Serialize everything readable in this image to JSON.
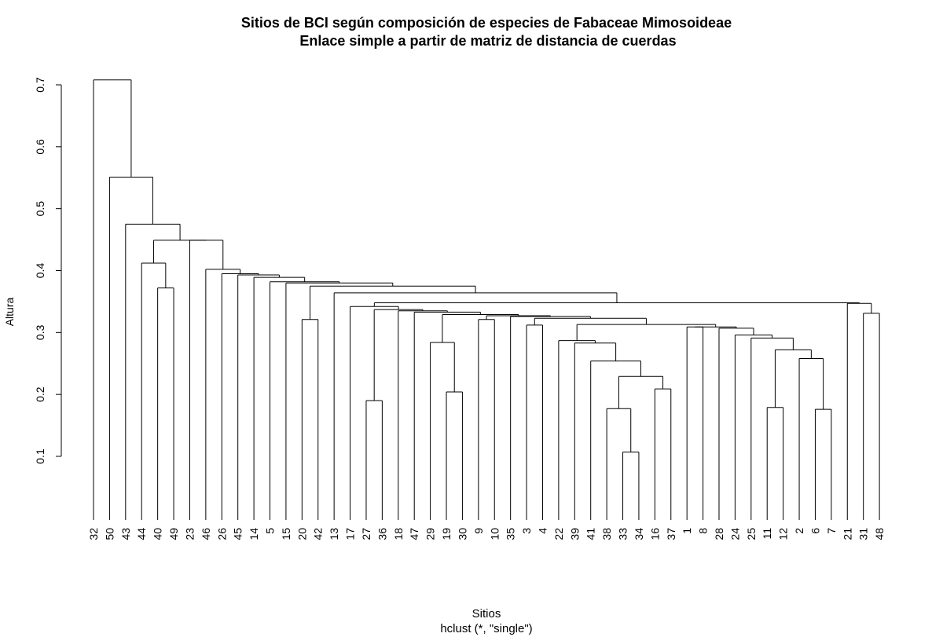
{
  "chart_data": {
    "type": "dendrogram",
    "title": "Sitios de BCI según composición de especies de Fabaceae Mimosoideae",
    "subtitle": "Enlace simple a partir de matriz de distancia de cuerdas",
    "xlabel": "Sitios",
    "sublabel": "hclust (*, \"single\")",
    "ylabel": "Altura",
    "yticks": [
      0.1,
      0.2,
      0.3,
      0.4,
      0.5,
      0.6,
      0.7
    ],
    "ylim": [
      0.1,
      0.7
    ],
    "leaf_order": [
      "32",
      "50",
      "43",
      "44",
      "40",
      "49",
      "23",
      "46",
      "26",
      "45",
      "14",
      "5",
      "15",
      "20",
      "42",
      "13",
      "17",
      "27",
      "36",
      "18",
      "47",
      "29",
      "19",
      "30",
      "9",
      "10",
      "35",
      "3",
      "4",
      "22",
      "39",
      "41",
      "38",
      "33",
      "34",
      "16",
      "37",
      "1",
      "8",
      "28",
      "24",
      "25",
      "11",
      "12",
      "2",
      "6",
      "7",
      "21",
      "31",
      "48"
    ],
    "merges": [
      {
        "a": "33",
        "b": "34",
        "height": 0.107
      },
      {
        "a": "6",
        "b": "7",
        "height": 0.176
      },
      {
        "a": "38",
        "b": [
          "33",
          "34"
        ],
        "height": 0.177
      },
      {
        "a": "11",
        "b": "12",
        "height": 0.179
      },
      {
        "a": "27",
        "b": "36",
        "height": 0.19
      },
      {
        "a": "19",
        "b": "30",
        "height": 0.204
      },
      {
        "a": "16",
        "b": "37",
        "height": 0.209
      },
      {
        "a": [
          "38",
          "33",
          "34"
        ],
        "b": [
          "16",
          "37"
        ],
        "height": 0.229
      },
      {
        "a": "41",
        "b": [
          "38",
          "33",
          "34",
          "16",
          "37"
        ],
        "height": 0.254
      },
      {
        "a": "2",
        "b": [
          "6",
          "7"
        ],
        "height": 0.258
      },
      {
        "a": [
          "11",
          "12"
        ],
        "b": [
          "2",
          "6",
          "7"
        ],
        "height": 0.272
      },
      {
        "a": "29",
        "b": [
          "19",
          "30"
        ],
        "height": 0.284
      },
      {
        "a": "39",
        "b": [
          "41",
          "38",
          "33",
          "34",
          "16",
          "37"
        ],
        "height": 0.283
      },
      {
        "a": "22",
        "b": [
          "39",
          "41",
          "38",
          "33",
          "34",
          "16",
          "37"
        ],
        "height": 0.287
      },
      {
        "a": "25",
        "b": [
          "11",
          "12",
          "2",
          "6",
          "7"
        ],
        "height": 0.291
      },
      {
        "a": "24",
        "b": [
          "25",
          "11",
          "12",
          "2",
          "6",
          "7"
        ],
        "height": 0.296
      },
      {
        "a": "28",
        "b": [
          "24",
          "25",
          "11",
          "12",
          "2",
          "6",
          "7"
        ],
        "height": 0.307
      },
      {
        "a": "1",
        "b": "8",
        "height": 0.309
      },
      {
        "a": [
          "1",
          "8"
        ],
        "b": [
          "28",
          "24",
          "25",
          "11",
          "12",
          "2",
          "6",
          "7"
        ],
        "height": 0.309
      },
      {
        "a": "3",
        "b": "4",
        "height": 0.312
      },
      {
        "a": [
          "22",
          "39",
          "41",
          "38",
          "33",
          "34",
          "16",
          "37"
        ],
        "b": [
          "1",
          "8",
          "28",
          "24",
          "25",
          "11",
          "12",
          "2",
          "6",
          "7"
        ],
        "height": 0.313
      },
      {
        "a": "20",
        "b": "42",
        "height": 0.321
      },
      {
        "a": "9",
        "b": "10",
        "height": 0.321
      },
      {
        "a": [
          "3",
          "4"
        ],
        "b": [
          "22",
          "...",
          "7"
        ],
        "height": 0.323
      },
      {
        "a": "35",
        "b": [
          "3",
          "4",
          "22",
          "...",
          "7"
        ],
        "height": 0.326
      },
      {
        "a": [
          "9",
          "10"
        ],
        "b": [
          "35",
          "3",
          "...",
          "7"
        ],
        "height": 0.327
      },
      {
        "a": [
          "29",
          "19",
          "30"
        ],
        "b": [
          "9",
          "10",
          "35",
          "...",
          "7"
        ],
        "height": 0.329
      },
      {
        "a": "47",
        "b": [
          "29",
          "...",
          "7"
        ],
        "height": 0.333
      },
      {
        "a": "18",
        "b": [
          "47",
          "...",
          "7"
        ],
        "height": 0.335
      },
      {
        "a": [
          "27",
          "36"
        ],
        "b": [
          "18",
          "...",
          "7"
        ],
        "height": 0.337
      },
      {
        "a": "17",
        "b": [
          "27",
          "...",
          "7"
        ],
        "height": 0.342
      },
      {
        "a": "31",
        "b": "48",
        "height": 0.331
      },
      {
        "a": "21",
        "b": [
          "31",
          "48"
        ],
        "height": 0.347
      },
      {
        "a": [
          "17",
          "...",
          "7"
        ],
        "b": [
          "21",
          "31",
          "48"
        ],
        "height": 0.348
      },
      {
        "a": "13",
        "b": [
          "17",
          "...",
          "48"
        ],
        "height": 0.364
      },
      {
        "a": [
          "20",
          "42"
        ],
        "b": [
          "13",
          "...",
          "48"
        ],
        "height": 0.375
      },
      {
        "a": "15",
        "b": [
          "20",
          "...",
          "48"
        ],
        "height": 0.38
      },
      {
        "a": "5",
        "b": [
          "15",
          "...",
          "48"
        ],
        "height": 0.382
      },
      {
        "a": "14",
        "b": [
          "5",
          "...",
          "48"
        ],
        "height": 0.389
      },
      {
        "a": "45",
        "b": [
          "14",
          "...",
          "48"
        ],
        "height": 0.393
      },
      {
        "a": "26",
        "b": [
          "45",
          "...",
          "48"
        ],
        "height": 0.395
      },
      {
        "a": "46",
        "b": [
          "26",
          "...",
          "48"
        ],
        "height": 0.402
      },
      {
        "a": "40",
        "b": "49",
        "height": 0.372
      },
      {
        "a": "44",
        "b": [
          "40",
          "49"
        ],
        "height": 0.412
      },
      {
        "a": "23",
        "b": [
          "46",
          "...",
          "48"
        ],
        "height": 0.449
      },
      {
        "a": [
          "44",
          "40",
          "49"
        ],
        "b": [
          "23",
          "...",
          "48"
        ],
        "height": 0.449
      },
      {
        "a": "43",
        "b": [
          "44",
          "...",
          "48"
        ],
        "height": 0.475
      },
      {
        "a": "50",
        "b": [
          "43",
          "...",
          "48"
        ],
        "height": 0.551
      },
      {
        "a": "32",
        "b": [
          "50",
          "...",
          "48"
        ],
        "height": 0.708
      }
    ]
  }
}
